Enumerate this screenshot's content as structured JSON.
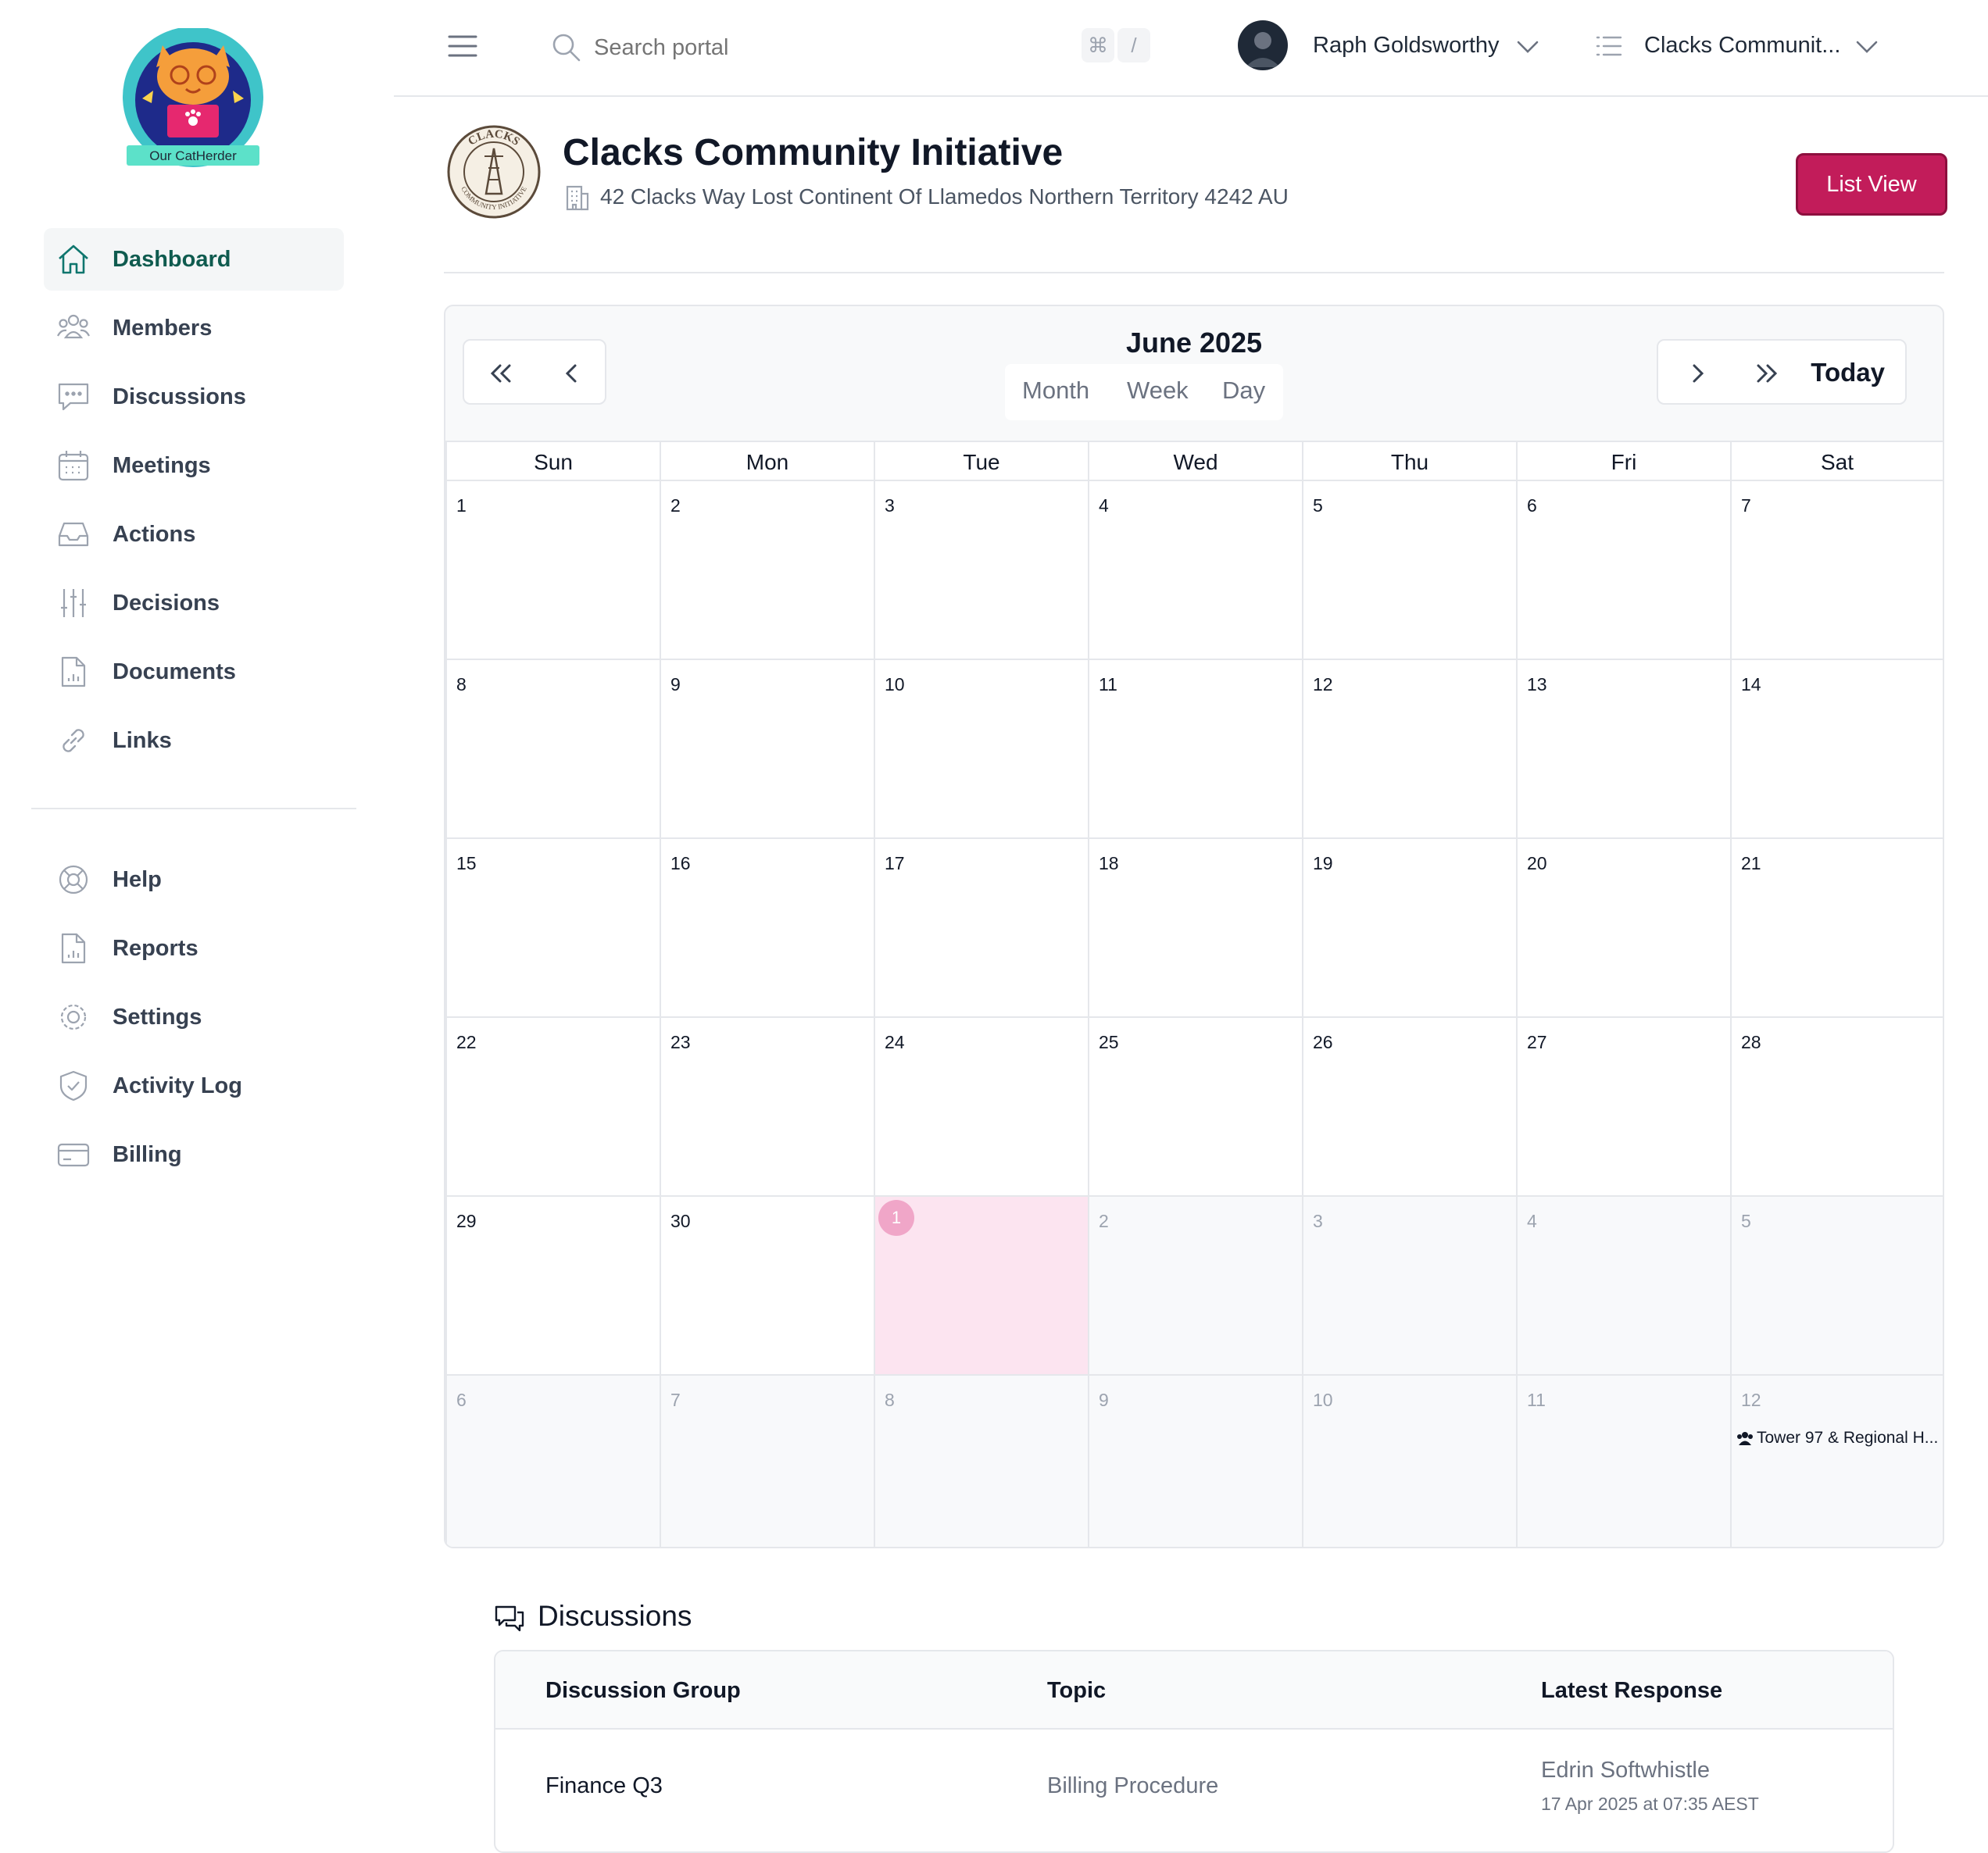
{
  "brand": {
    "logo_text": "Our CatHerder"
  },
  "sidebar": {
    "items": [
      {
        "label": "Dashboard",
        "icon": "home-icon",
        "active": true
      },
      {
        "label": "Members",
        "icon": "users-icon"
      },
      {
        "label": "Discussions",
        "icon": "chat-bubble-icon"
      },
      {
        "label": "Meetings",
        "icon": "calendar-icon"
      },
      {
        "label": "Actions",
        "icon": "inbox-icon"
      },
      {
        "label": "Decisions",
        "icon": "sliders-icon"
      },
      {
        "label": "Documents",
        "icon": "document-chart-icon"
      },
      {
        "label": "Links",
        "icon": "link-icon"
      }
    ],
    "secondary": [
      {
        "label": "Help",
        "icon": "lifebuoy-icon"
      },
      {
        "label": "Reports",
        "icon": "report-icon"
      },
      {
        "label": "Settings",
        "icon": "cog-icon"
      },
      {
        "label": "Activity Log",
        "icon": "shield-check-icon"
      },
      {
        "label": "Billing",
        "icon": "credit-card-icon"
      }
    ]
  },
  "topbar": {
    "search_placeholder": "Search portal",
    "shortcut_keys": [
      "⌘",
      "/"
    ],
    "user_name": "Raph Goldsworthy",
    "org_name": "Clacks Communit..."
  },
  "org": {
    "title": "Clacks Community Initiative",
    "address": "42 Clacks Way Lost Continent Of Llamedos Northern Territory 4242 AU",
    "list_view_label": "List View",
    "seal_text_top": "CLACKS",
    "seal_text_bottom": "COMMUNITY INITIATIVE"
  },
  "calendar": {
    "title": "June 2025",
    "views": [
      "Month",
      "Week",
      "Day"
    ],
    "today_label": "Today",
    "weekdays": [
      "Sun",
      "Mon",
      "Tue",
      "Wed",
      "Thu",
      "Fri",
      "Sat"
    ],
    "weeks": [
      [
        {
          "d": "1"
        },
        {
          "d": "2"
        },
        {
          "d": "3"
        },
        {
          "d": "4"
        },
        {
          "d": "5"
        },
        {
          "d": "6"
        },
        {
          "d": "7"
        }
      ],
      [
        {
          "d": "8"
        },
        {
          "d": "9"
        },
        {
          "d": "10"
        },
        {
          "d": "11"
        },
        {
          "d": "12"
        },
        {
          "d": "13"
        },
        {
          "d": "14"
        }
      ],
      [
        {
          "d": "15"
        },
        {
          "d": "16"
        },
        {
          "d": "17"
        },
        {
          "d": "18"
        },
        {
          "d": "19"
        },
        {
          "d": "20"
        },
        {
          "d": "21"
        }
      ],
      [
        {
          "d": "22"
        },
        {
          "d": "23"
        },
        {
          "d": "24"
        },
        {
          "d": "25"
        },
        {
          "d": "26"
        },
        {
          "d": "27"
        },
        {
          "d": "28"
        }
      ],
      [
        {
          "d": "29"
        },
        {
          "d": "30"
        },
        {
          "d": "1",
          "other": true,
          "today": true
        },
        {
          "d": "2",
          "other": true
        },
        {
          "d": "3",
          "other": true
        },
        {
          "d": "4",
          "other": true
        },
        {
          "d": "5",
          "other": true
        }
      ],
      [
        {
          "d": "6",
          "other": true
        },
        {
          "d": "7",
          "other": true
        },
        {
          "d": "8",
          "other": true
        },
        {
          "d": "9",
          "other": true
        },
        {
          "d": "10",
          "other": true
        },
        {
          "d": "11",
          "other": true
        },
        {
          "d": "12",
          "other": true,
          "event": "Tower 97 & Regional H..."
        }
      ]
    ]
  },
  "discussions": {
    "title": "Discussions",
    "columns": [
      "Discussion Group",
      "Topic",
      "Latest Response"
    ],
    "rows": [
      {
        "group": "Finance Q3",
        "topic": "Billing Procedure",
        "responder": "Edrin Softwhistle",
        "time": "17 Apr 2025 at 07:35 AEST"
      }
    ]
  },
  "colors": {
    "accent": "#c21c5a",
    "active_nav": "#0f5b4f",
    "today_bg": "#fce4f0"
  }
}
